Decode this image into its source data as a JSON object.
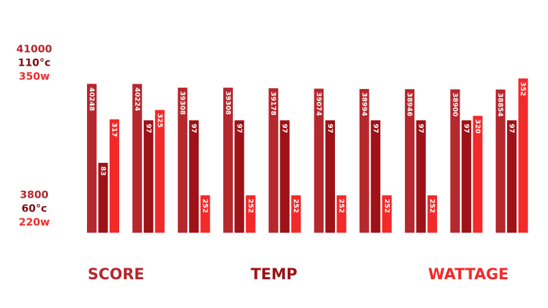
{
  "chart_data": {
    "type": "bar",
    "series": [
      {
        "name": "SCORE",
        "color": "#b5282d",
        "values": [
          40248,
          40224,
          39308,
          39308,
          39178,
          39074,
          38994,
          38946,
          38900,
          38854
        ],
        "ylim": [
          3800,
          41000
        ],
        "yticks": [
          {
            "value": 3800,
            "label": "3800"
          },
          {
            "value": 41000,
            "label": "41000"
          }
        ]
      },
      {
        "name": "TEMP",
        "color": "#9e1218",
        "values": [
          83,
          97,
          97,
          97,
          97,
          97,
          97,
          97,
          97,
          97
        ],
        "ylim": [
          60,
          110
        ],
        "yticks": [
          {
            "value": 60,
            "label": "60°c"
          },
          {
            "value": 110,
            "label": "110°c"
          }
        ]
      },
      {
        "name": "WATTAGE",
        "color": "#f22a2a",
        "values": [
          317,
          325,
          252,
          252,
          252,
          252,
          252,
          252,
          320,
          352
        ],
        "ylim": [
          220,
          350
        ],
        "yticks": [
          {
            "value": 220,
            "label": "220w"
          },
          {
            "value": 350,
            "label": "350w"
          }
        ]
      }
    ]
  }
}
